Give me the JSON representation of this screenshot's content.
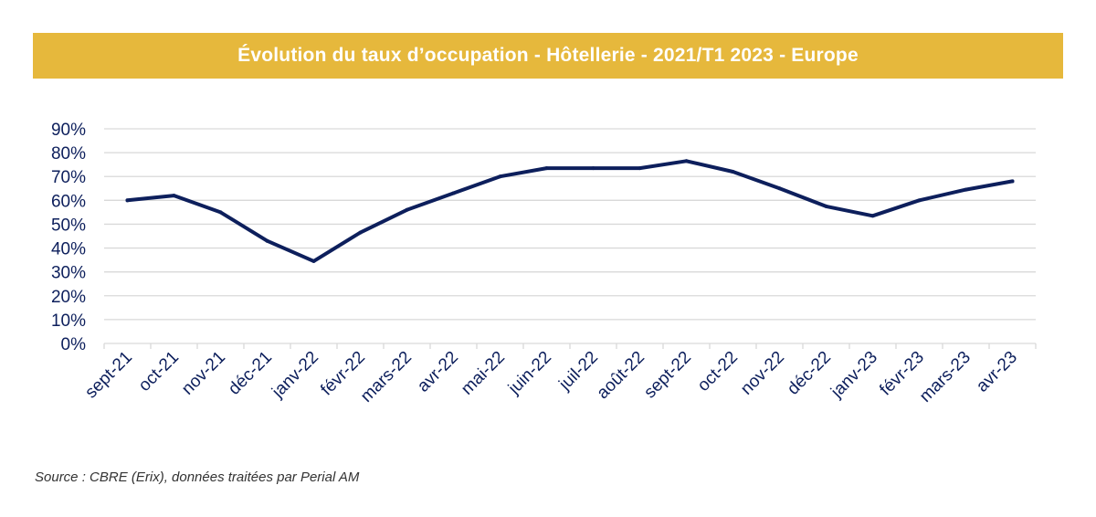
{
  "chart_data": {
    "type": "line",
    "title": "Évolution du taux d’occupation - Hôtellerie - 2021/T1 2023 - Europe",
    "xlabel": "",
    "ylabel": "",
    "ylim": [
      0,
      90
    ],
    "yticks": [
      "0%",
      "10%",
      "20%",
      "30%",
      "40%",
      "50%",
      "60%",
      "70%",
      "80%",
      "90%"
    ],
    "grid": true,
    "categories": [
      "sept-21",
      "oct-21",
      "nov-21",
      "déc-21",
      "janv-22",
      "févr-22",
      "mars-22",
      "avr-22",
      "mai-22",
      "juin-22",
      "juil-22",
      "août-22",
      "sept-22",
      "oct-22",
      "nov-22",
      "déc-22",
      "janv-23",
      "févr-23",
      "mars-23",
      "avr-23"
    ],
    "series": [
      {
        "values": [
          60,
          62,
          55,
          43,
          34.5,
          46.5,
          56,
          63,
          70,
          73.5,
          73.5,
          73.5,
          76.5,
          72,
          65,
          57.5,
          53.5,
          60,
          64.5,
          68
        ]
      }
    ],
    "colors": {
      "line": "#0d1f5c",
      "grid": "#d9d9d9",
      "axis_text": "#0d1f5c",
      "title_bg": "#e6b83c"
    }
  },
  "source": "Source : CBRE (Erix), données traitées par Perial AM"
}
